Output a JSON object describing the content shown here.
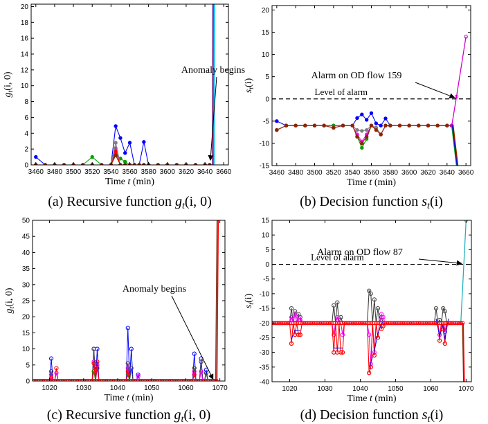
{
  "chart_data": [
    {
      "type": "line",
      "panel": "a",
      "caption": "(a) Recursive function g_t(i, 0)",
      "caption_prefix": "(a) Recursive function ",
      "caption_math": "g_t(i, 0)",
      "xlabel": "Time t (min)",
      "ylabel": "g_t(i, 0)",
      "xlim": [
        3455,
        3665
      ],
      "ylim": [
        0,
        20.3
      ],
      "xticks": [
        3460,
        3480,
        3500,
        3520,
        3540,
        3560,
        3580,
        3600,
        3620,
        3640,
        3660
      ],
      "yticks": [
        0,
        2,
        4,
        6,
        8,
        10,
        12,
        14,
        16,
        18,
        20
      ],
      "x": [
        3460,
        3470,
        3480,
        3490,
        3500,
        3510,
        3520,
        3530,
        3540,
        3545,
        3550,
        3555,
        3560,
        3565,
        3570,
        3575,
        3580,
        3590,
        3600,
        3610,
        3620,
        3630,
        3640,
        3645
      ],
      "series": [
        {
          "color": "#0000ff",
          "values": [
            1,
            0,
            0,
            0,
            0,
            0,
            0,
            0,
            0,
            4.9,
            3.4,
            1.5,
            2.8,
            0,
            0,
            2.9,
            0,
            0,
            0,
            0,
            0,
            0,
            0,
            0
          ]
        },
        {
          "color": "#00a000",
          "values": [
            0,
            0,
            0,
            0,
            0,
            0,
            1,
            0,
            0,
            1.4,
            0.8,
            0.4,
            0,
            0,
            0,
            0,
            0,
            0,
            0,
            0,
            0,
            0,
            0,
            0
          ]
        },
        {
          "color": "#ff00ff",
          "values": [
            0,
            0,
            0,
            0,
            0,
            0,
            0,
            0,
            0,
            2.1,
            0,
            0,
            0,
            0,
            0,
            0,
            0,
            0,
            0,
            0,
            0,
            0,
            0,
            0
          ]
        },
        {
          "color": "#ff0000",
          "values": [
            0,
            0,
            0,
            0,
            0,
            0,
            0,
            0,
            0,
            1.7,
            0,
            0,
            0,
            0,
            0,
            0,
            0,
            0,
            0,
            0,
            0,
            0,
            0,
            0
          ]
        },
        {
          "color": "#808080",
          "values": [
            0,
            0,
            0,
            0,
            0,
            0,
            0,
            0,
            0,
            2.8,
            0,
            0,
            0,
            0,
            0,
            0,
            0,
            0,
            0,
            0,
            0,
            0,
            0,
            0
          ]
        },
        {
          "color": "#8b2500",
          "values": [
            0,
            0,
            0,
            0,
            0,
            0,
            0,
            0,
            0,
            1.2,
            0,
            0,
            0,
            0,
            0,
            0,
            0,
            0,
            0,
            0,
            0,
            0,
            0,
            0
          ]
        }
      ],
      "spike": {
        "x": 3648,
        "x_end": 3650,
        "colors": [
          "#0000ff",
          "#00a000",
          "#ff00ff",
          "#ff0000",
          "#808080",
          "#8b2500",
          "#00bfff"
        ]
      },
      "annotation": {
        "text": "Anomaly begins",
        "x": 3648,
        "y": 0.6
      }
    },
    {
      "type": "line",
      "panel": "b",
      "caption": "(b) Decision function s_t(i)",
      "caption_prefix": "(b) Decision function ",
      "caption_math": "s_t(i)",
      "xlabel": "Time t (min)",
      "ylabel": "s_t(i)",
      "xlim": [
        3455,
        3665
      ],
      "ylim": [
        -15,
        21
      ],
      "xticks": [
        3460,
        3480,
        3500,
        3520,
        3540,
        3560,
        3580,
        3600,
        3620,
        3640,
        3660
      ],
      "yticks": [
        -15,
        -10,
        -5,
        0,
        5,
        10,
        15,
        20
      ],
      "x": [
        3460,
        3470,
        3480,
        3490,
        3500,
        3510,
        3520,
        3530,
        3540,
        3545,
        3550,
        3555,
        3560,
        3565,
        3570,
        3575,
        3580,
        3590,
        3600,
        3610,
        3620,
        3630,
        3640,
        3645
      ],
      "series": [
        {
          "color": "#0000ff",
          "values": [
            -5,
            -6,
            -6,
            -6,
            -6,
            -6,
            -6,
            -6,
            -6,
            -4.3,
            -3.5,
            -4.7,
            -3.2,
            -5.5,
            -6,
            -4.4,
            -6,
            -6,
            -6,
            -6,
            -6,
            -6,
            -6,
            -6
          ]
        },
        {
          "color": "#00a000",
          "values": [
            -7,
            -6,
            -6,
            -6,
            -6,
            -6,
            -6,
            -6,
            -6,
            -8.5,
            -11,
            -9,
            -6,
            -6.5,
            -8,
            -6,
            -6,
            -6,
            -6,
            -6,
            -6,
            -6,
            -6,
            -6
          ]
        },
        {
          "color": "#ff00ff",
          "values": [
            -7,
            -6,
            -6,
            -6,
            -6,
            -6,
            -6.5,
            -6,
            -6,
            -8,
            -9.6,
            -8,
            -6,
            -6.5,
            -8,
            -6,
            -6,
            -6,
            -6,
            -6,
            -6,
            -6,
            -6,
            -6
          ]
        },
        {
          "color": "#808080",
          "values": [
            -7,
            -6,
            -6,
            -6,
            -6,
            -6,
            -6.5,
            -6,
            -6,
            -7,
            -7.2,
            -7,
            -6,
            -6.5,
            -8,
            -6,
            -6,
            -6,
            -6,
            -6,
            -6,
            -6,
            -6,
            -6
          ]
        },
        {
          "color": "#8b2500",
          "values": [
            -7,
            -6,
            -6,
            -6,
            -6,
            -6,
            -6.5,
            -6,
            -6,
            -8.5,
            -10,
            -8.5,
            -6,
            -7,
            -8,
            -6,
            -6,
            -6,
            -6,
            -6,
            -6,
            -6,
            -6,
            -6
          ]
        }
      ],
      "rise": {
        "x": [
          3645,
          3650,
          3660
        ],
        "values": [
          -6,
          0.5,
          14
        ],
        "color": "#d000d0"
      },
      "drop": {
        "x": [
          3645,
          3650
        ],
        "values": [
          -6,
          -15
        ],
        "colors": [
          "#00a000",
          "#0000ff",
          "#8b2500"
        ]
      },
      "threshold": {
        "y": 0,
        "label": "Level of alarm",
        "label_x": 3500
      },
      "annotation": {
        "text": "Alarm on OD flow 159",
        "x": 3650,
        "y": 0.3
      }
    },
    {
      "type": "line",
      "panel": "c",
      "caption": "(c) Recursive function g_t(i, 0)",
      "caption_prefix": "(c) Recursive function ",
      "caption_math": "g_t(i, 0)",
      "xlabel": "Time t (min)",
      "ylabel": "g_t(i, 0)",
      "xlim": [
        1015,
        1071.5
      ],
      "ylim": [
        0,
        50
      ],
      "xticks": [
        1020,
        1030,
        1040,
        1050,
        1060,
        1070
      ],
      "yticks": [
        0,
        5,
        10,
        15,
        20,
        25,
        30,
        35,
        40,
        45,
        50
      ],
      "x_start": 1015,
      "x_end": 1069,
      "x_step": 0.5,
      "peaks": [
        {
          "x": 1020.5,
          "values": {
            "blue": 7,
            "black": 3,
            "magenta": 2,
            "red": 1
          }
        },
        {
          "x": 1022,
          "values": {
            "red": 4,
            "magenta": 2.5
          }
        },
        {
          "x": 1033,
          "values": {
            "blue": 10,
            "black": 10,
            "magenta": 6,
            "red": 5.5,
            "green": 3
          }
        },
        {
          "x": 1034,
          "values": {
            "blue": 10,
            "black": 4,
            "magenta": 5,
            "red": 6
          }
        },
        {
          "x": 1043,
          "values": {
            "blue": 16.5,
            "black": 5.5,
            "magenta": 4,
            "red": 3,
            "green": 2
          }
        },
        {
          "x": 1044,
          "values": {
            "blue": 10,
            "black": 4
          }
        },
        {
          "x": 1046,
          "values": {
            "blue": 2,
            "magenta": 1.5
          }
        },
        {
          "x": 1062.5,
          "values": {
            "blue": 8.5,
            "black": 4,
            "magenta": 3,
            "red": 2
          }
        },
        {
          "x": 1064.5,
          "values": {
            "blue": 7,
            "black": 6,
            "magenta": 3
          }
        },
        {
          "x": 1066,
          "values": {
            "blue": 3.5,
            "black": 2.5
          }
        }
      ],
      "spike": {
        "x": 1068.8,
        "x_end": 1069.3,
        "colors": [
          "#8b2500",
          "#808080",
          "#ff0000"
        ]
      },
      "annotation": {
        "text": "Anomaly begins",
        "x": 1068.6,
        "y": 0.6
      }
    },
    {
      "type": "line",
      "panel": "d",
      "caption": "(d) Decision function s_t(i)",
      "caption_prefix": "(d) Decision function ",
      "caption_math": "s_t(i)",
      "xlabel": "Time t (min)",
      "ylabel": "s_t(i)",
      "xlim": [
        1015,
        1071.5
      ],
      "ylim": [
        -40,
        15
      ],
      "xticks": [
        1020,
        1030,
        1040,
        1050,
        1060,
        1070
      ],
      "yticks": [
        -40,
        -35,
        -30,
        -25,
        -20,
        -15,
        -10,
        -5,
        0,
        5,
        10,
        15
      ],
      "x_start": 1015,
      "x_end": 1069,
      "x_step": 0.5,
      "baseline": -20,
      "events": [
        {
          "x": [
            1020.5,
            1021.5,
            1022.5,
            1023
          ],
          "black": [
            -15,
            -16,
            -17,
            -18
          ],
          "magenta": [
            -18,
            -17,
            -18,
            -19
          ],
          "red": [
            -27,
            -24,
            -24,
            -24
          ]
        },
        {
          "x": [
            1032.5,
            1033.5,
            1034.5,
            1035
          ],
          "black": [
            -14,
            -13,
            -18,
            -20
          ],
          "magenta": [
            -24,
            -18,
            -20,
            -24
          ],
          "red": [
            -30,
            -30,
            -30,
            -30
          ]
        },
        {
          "x": [
            1042.5,
            1043,
            1044,
            1045,
            1046,
            1046.5
          ],
          "black": [
            -9,
            -10,
            -12,
            -15,
            -18,
            -20
          ],
          "magenta": [
            -24,
            -34,
            -30,
            -25,
            -17,
            -18
          ],
          "red": [
            -37,
            -35,
            -31,
            -25,
            -22,
            -21
          ]
        },
        {
          "x": [
            1061.5,
            1062.5,
            1063.5,
            1064,
            1065
          ],
          "black": [
            -15,
            -19,
            -15,
            -16,
            -20
          ],
          "magenta": [
            -20,
            -24,
            -21,
            -23,
            -20
          ],
          "red": [
            -20,
            -26,
            -22,
            -27,
            -20
          ]
        }
      ],
      "rise": {
        "x": [
          1068.5,
          1070
        ],
        "values": [
          -20,
          15
        ],
        "color": "#20b0c0"
      },
      "drop": {
        "x": [
          1069,
          1069.3
        ],
        "values": [
          -20,
          -40
        ],
        "colors": [
          "#8b2500",
          "#ff0000"
        ]
      },
      "threshold": {
        "y": 0,
        "label": "Level of alarm",
        "label_x": 1026
      },
      "annotation": {
        "text": "Alarm on OD flow 87",
        "x": 1069.3,
        "y": 0.3
      }
    }
  ]
}
